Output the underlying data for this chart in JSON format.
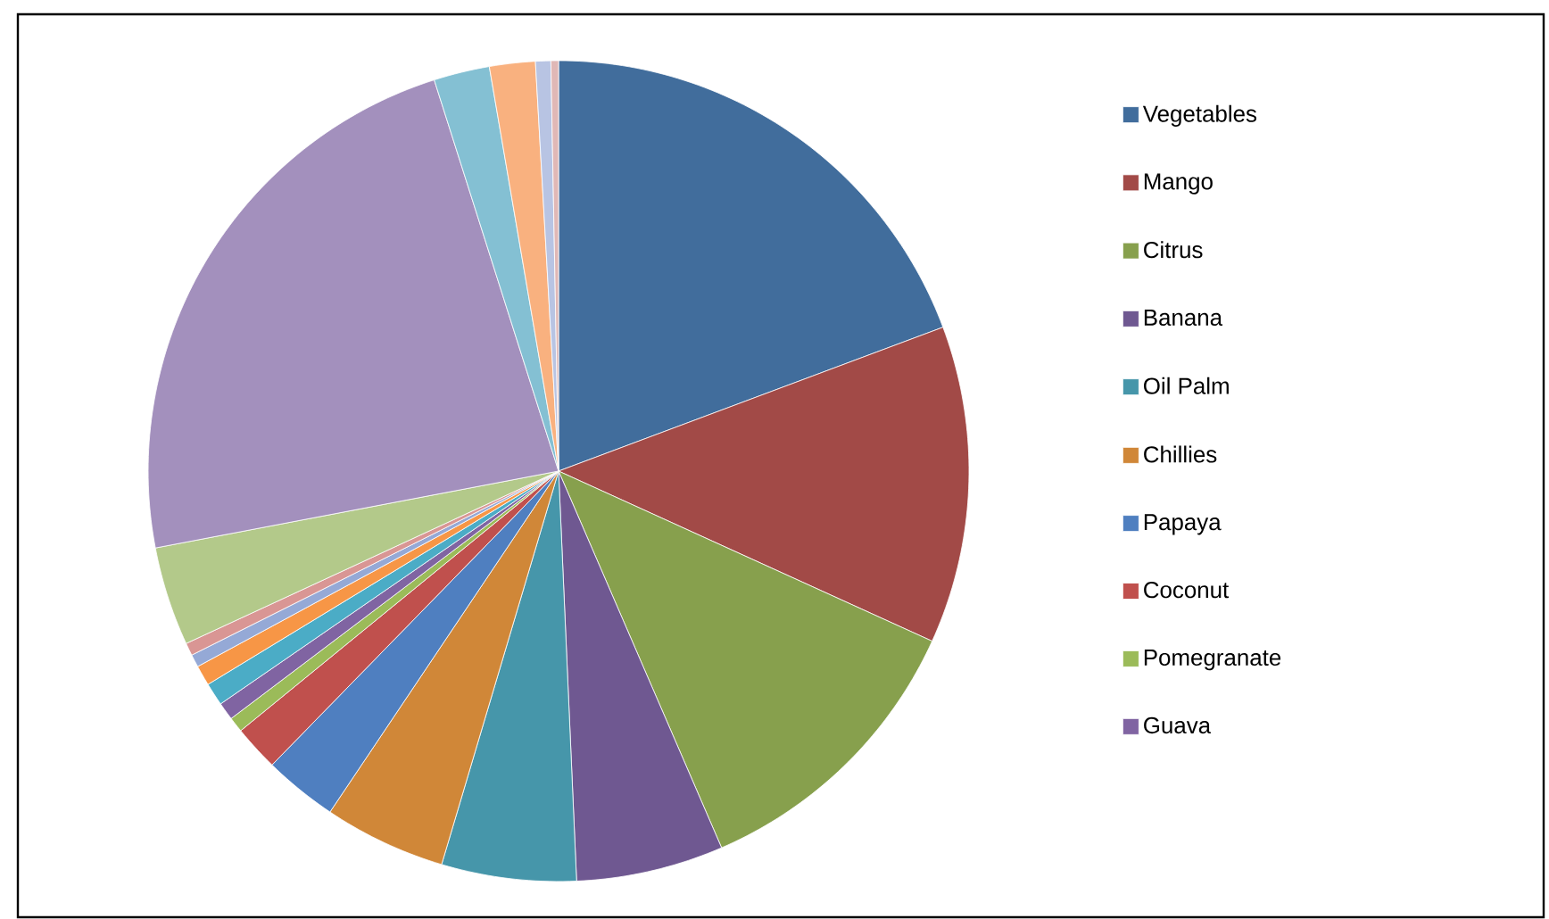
{
  "chart_data": {
    "type": "pie",
    "categories": [
      "Vegetables",
      "Mango",
      "Citrus",
      "Banana",
      "Oil Palm",
      "Chillies",
      "Papaya",
      "Coconut",
      "Pomegranate",
      "Guava",
      null,
      null,
      null,
      null,
      null,
      null,
      null,
      null,
      null,
      null
    ],
    "values": [
      19.3,
      12.5,
      11.7,
      5.8,
      5.3,
      4.8,
      2.9,
      1.8,
      0.6,
      0.7,
      0.9,
      0.8,
      0.5,
      0.5,
      3.9,
      23.1,
      2.2,
      1.8,
      0.6,
      0.3
    ],
    "colors": [
      "#416d9c",
      "#a24a47",
      "#87a04d",
      "#6f5891",
      "#4696aa",
      "#d08738",
      "#4f7fc0",
      "#c0504d",
      "#9bbb59",
      "#8064a2",
      "#4bacc6",
      "#f79646",
      "#95a9d6",
      "#d99694",
      "#b3c98a",
      "#a390bd",
      "#84c0d3",
      "#f9b17f",
      "#b8c4e3",
      "#e0b8b6"
    ],
    "legend": "right"
  }
}
